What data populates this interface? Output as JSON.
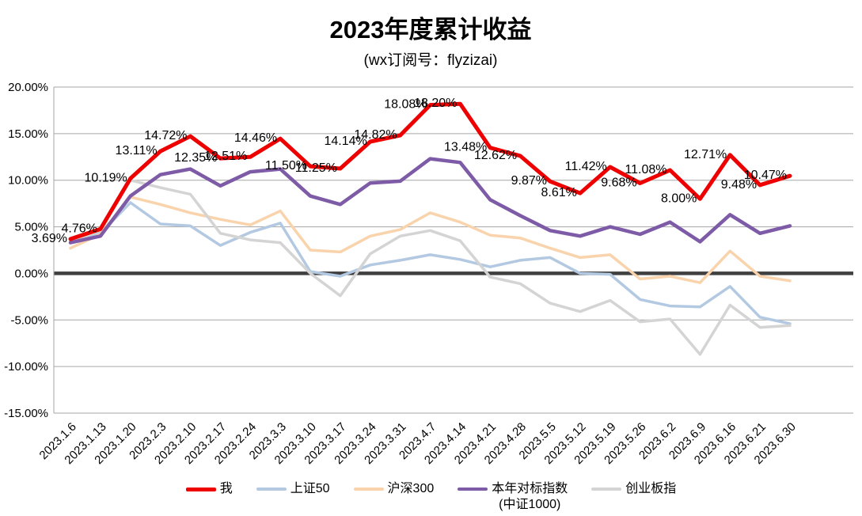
{
  "title": "2023年度累计收益",
  "subtitle": "(wx订阅号：flyzizai)",
  "colors": {
    "gridline": "#a6a6a6",
    "zero_line": "#3f3f3f",
    "background": "#ffffff",
    "label_text": "#000000"
  },
  "y_axis_tick_labels": [
    "20.00%",
    "15.00%",
    "10.00%",
    "5.00%",
    "0.00%",
    "-5.00%",
    "-10.00%",
    "-15.00%"
  ],
  "chart_data": {
    "type": "line",
    "title": "2023年度累计收益",
    "subtitle": "(wx订阅号：flyzizai)",
    "grid": true,
    "legend_position": "bottom",
    "ylim": [
      -15,
      20
    ],
    "ytick_step": 5,
    "ytick_format": "0.00%",
    "categories": [
      "2023.1.6",
      "2023.1.13",
      "2023.1.20",
      "2023.2.3",
      "2023.2.10",
      "2023.2.17",
      "2023.2.24",
      "2023.3.3",
      "2023.3.10",
      "2023.3.17",
      "2023.3.24",
      "2023.3.31",
      "2023.4.7",
      "2023.4.14",
      "2023.4.21",
      "2023.4.28",
      "2023.5.5",
      "2023.5.12",
      "2023.5.19",
      "2023.5.26",
      "2023.6.2",
      "2023.6.9",
      "2023.6.16",
      "2023.6.21",
      "2023.6.30"
    ],
    "series": [
      {
        "id": "sse50",
        "name": "上证50",
        "color": "#b3c9e2",
        "stroke_width": 3.5,
        "data_labels": false,
        "values": [
          3.5,
          4.3,
          7.6,
          5.3,
          5.1,
          3.0,
          4.4,
          5.4,
          0.2,
          -0.3,
          0.9,
          1.4,
          2.0,
          1.5,
          0.7,
          1.4,
          1.7,
          0.0,
          -0.1,
          -2.8,
          -3.5,
          -3.6,
          -1.4,
          -4.7,
          -5.4
        ]
      },
      {
        "id": "csi300",
        "name": "沪深300",
        "color": "#f9d3ab",
        "stroke_width": 3.5,
        "data_labels": false,
        "values": [
          2.7,
          4.2,
          8.2,
          7.4,
          6.5,
          5.8,
          5.2,
          6.7,
          2.5,
          2.3,
          4.0,
          4.7,
          6.5,
          5.5,
          4.1,
          3.8,
          2.7,
          1.7,
          2.0,
          -0.6,
          -0.3,
          -1.0,
          2.4,
          -0.3,
          -0.8
        ]
      },
      {
        "id": "chinext",
        "name": "创业板指",
        "color": "#d4d4d4",
        "stroke_width": 3.5,
        "data_labels": false,
        "values": [
          3.4,
          4.6,
          10.0,
          9.2,
          8.5,
          4.3,
          3.6,
          3.3,
          0.0,
          -2.4,
          2.1,
          4.0,
          4.6,
          3.5,
          -0.4,
          -1.1,
          -3.2,
          -4.1,
          -2.9,
          -5.2,
          -4.9,
          -8.7,
          -3.4,
          -5.8,
          -5.6
        ]
      },
      {
        "id": "benchmark-csi1000",
        "name": "本年对标指数",
        "name_line2": "(中证1000)",
        "color": "#7d5ba6",
        "stroke_width": 4.5,
        "data_labels": false,
        "values": [
          3.3,
          4.0,
          8.3,
          10.6,
          11.2,
          9.4,
          10.9,
          11.2,
          8.3,
          7.4,
          9.7,
          9.9,
          12.3,
          11.9,
          7.9,
          6.2,
          4.6,
          4.0,
          5.0,
          4.2,
          5.5,
          3.4,
          6.3,
          4.3,
          5.1
        ]
      },
      {
        "id": "me",
        "name": "我",
        "color": "#ee0000",
        "stroke_width": 5,
        "data_labels": true,
        "values": [
          3.69,
          4.76,
          10.19,
          13.11,
          14.72,
          12.35,
          12.51,
          14.46,
          11.5,
          11.25,
          14.14,
          14.82,
          18.08,
          18.2,
          13.48,
          12.62,
          9.87,
          8.61,
          11.42,
          9.68,
          11.08,
          8.0,
          12.71,
          9.48,
          10.47
        ]
      }
    ],
    "legend_order": [
      "me",
      "sse50",
      "csi300",
      "benchmark-csi1000",
      "chinext"
    ]
  }
}
